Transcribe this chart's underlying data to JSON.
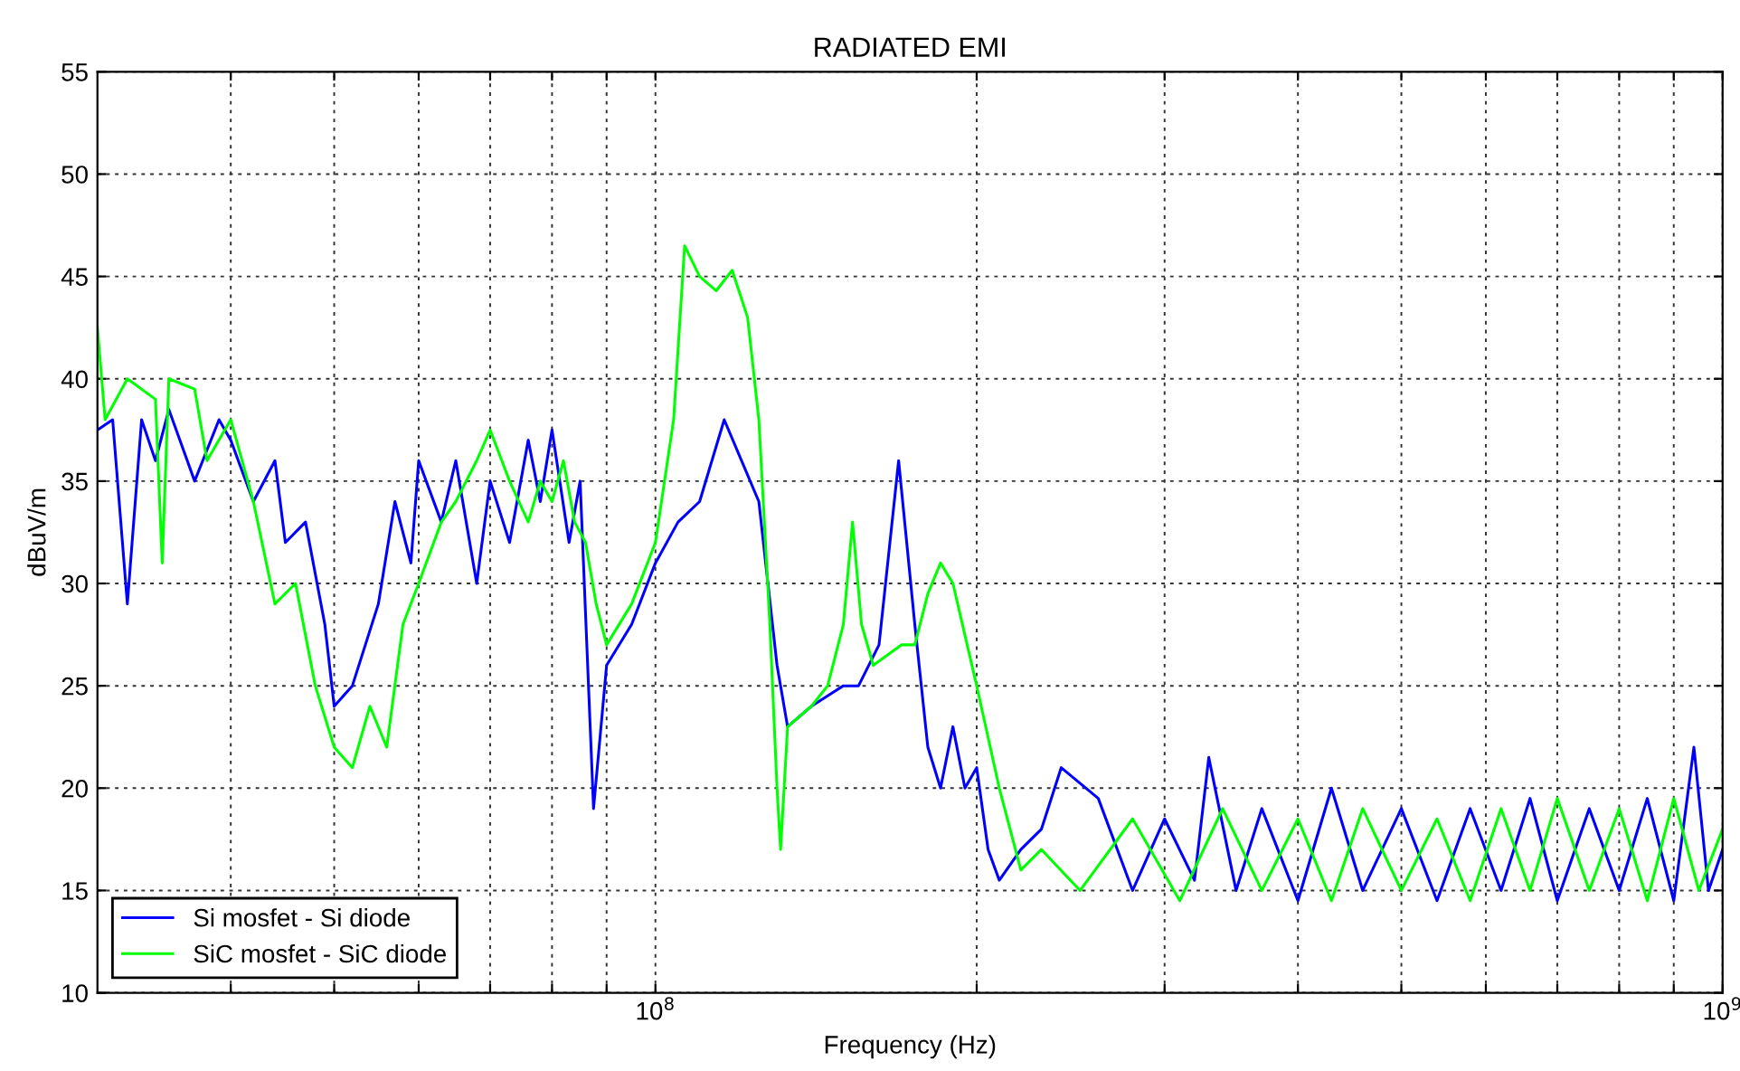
{
  "chart_data": {
    "type": "line",
    "title": "RADIATED EMI",
    "xlabel": "Frequency (Hz)",
    "ylabel": "dBuV/m",
    "log": "x",
    "xlim": [
      30000000,
      1000000000
    ],
    "ylim": [
      10,
      55
    ],
    "xticks": [
      {
        "value": 40000000,
        "label": null
      },
      {
        "value": 50000000,
        "label": null
      },
      {
        "value": 60000000,
        "label": null
      },
      {
        "value": 70000000,
        "label": null
      },
      {
        "value": 80000000,
        "label": null
      },
      {
        "value": 90000000,
        "label": null
      },
      {
        "value": 100000000,
        "label": "10$^{8}$"
      },
      {
        "value": 200000000,
        "label": null
      },
      {
        "value": 300000000,
        "label": null
      },
      {
        "value": 400000000,
        "label": null
      },
      {
        "value": 500000000,
        "label": null
      },
      {
        "value": 600000000,
        "label": null
      },
      {
        "value": 700000000,
        "label": null
      },
      {
        "value": 800000000,
        "label": null
      },
      {
        "value": 900000000,
        "label": null
      },
      {
        "value": 1000000000,
        "label": "10$^{9}$"
      }
    ],
    "yticks": [
      10,
      15,
      20,
      25,
      30,
      35,
      40,
      45,
      50,
      55
    ],
    "grid": true,
    "legend": "bottom left",
    "series": [
      {
        "name": "Si mosfet - Si diode",
        "color": "#0000ff",
        "x": [
          30000000,
          31000000,
          32000000,
          33000000,
          34000000,
          35000000,
          37000000,
          39000000,
          40000000,
          42000000,
          44000000,
          45000000,
          47000000,
          49000000,
          50000000,
          52000000,
          55000000,
          57000000,
          59000000,
          60000000,
          63000000,
          65000000,
          68000000,
          70000000,
          73000000,
          76000000,
          78000000,
          80000000,
          83000000,
          85000000,
          87500000,
          90000000,
          95000000,
          100000000,
          105000000,
          110000000,
          116000000,
          125000000,
          130000000,
          133000000,
          140000000,
          150000000,
          155000000,
          162000000,
          169000000,
          175000000,
          180000000,
          185000000,
          190000000,
          195000000,
          200000000,
          205000000,
          210000000,
          220000000,
          230000000,
          240000000,
          260000000,
          280000000,
          300000000,
          320000000,
          330000000,
          350000000,
          370000000,
          400000000,
          430000000,
          460000000,
          500000000,
          540000000,
          580000000,
          620000000,
          660000000,
          700000000,
          750000000,
          800000000,
          850000000,
          900000000,
          940000000,
          970000000,
          1000000000
        ],
        "values": [
          37.5,
          38,
          29,
          38,
          36,
          38.5,
          35,
          38,
          37,
          34,
          36,
          32,
          33,
          28,
          24,
          25,
          29,
          34,
          31,
          36,
          33,
          36,
          30,
          35,
          32,
          37,
          34,
          37.5,
          32,
          35,
          19,
          26,
          28,
          31,
          33,
          34,
          38,
          34,
          26,
          23,
          24,
          25,
          25,
          27,
          36,
          28,
          22,
          20,
          23,
          20,
          21,
          17,
          15.5,
          17,
          18,
          21,
          19.5,
          15,
          18.5,
          15.5,
          21.5,
          15,
          19,
          14.5,
          20,
          15,
          19,
          14.5,
          19,
          15,
          19.5,
          14.5,
          19,
          15,
          19.5,
          14.5,
          22,
          15,
          17
        ]
      },
      {
        "name": "SiC mosfet - SiC diode",
        "color": "#00ff00",
        "x": [
          30000000,
          30500000,
          32000000,
          34000000,
          34500000,
          35000000,
          37000000,
          38000000,
          40000000,
          42000000,
          44000000,
          46000000,
          48000000,
          50000000,
          52000000,
          54000000,
          56000000,
          58000000,
          60000000,
          63000000,
          65000000,
          68000000,
          70000000,
          73000000,
          76000000,
          78000000,
          80000000,
          82000000,
          84000000,
          86000000,
          88000000,
          90000000,
          95000000,
          100000000,
          104000000,
          106500000,
          110000000,
          114000000,
          118000000,
          122000000,
          125000000,
          128000000,
          130000000,
          131000000,
          133000000,
          140000000,
          145000000,
          150000000,
          153000000,
          156000000,
          160000000,
          170000000,
          175000000,
          180000000,
          185000000,
          190000000,
          200000000,
          210000000,
          220000000,
          230000000,
          250000000,
          280000000,
          310000000,
          340000000,
          370000000,
          400000000,
          430000000,
          460000000,
          500000000,
          540000000,
          580000000,
          620000000,
          660000000,
          700000000,
          750000000,
          800000000,
          850000000,
          900000000,
          950000000,
          1000000000
        ],
        "values": [
          42.5,
          38,
          40,
          39,
          31,
          40,
          39.5,
          36,
          38,
          34,
          29,
          30,
          25,
          22,
          21,
          24,
          22,
          28,
          30,
          33,
          34,
          36,
          37.5,
          35,
          33,
          35,
          34,
          36,
          33,
          32,
          29,
          27,
          29,
          32,
          38,
          46.5,
          45,
          44.3,
          45.3,
          43,
          38,
          28,
          20,
          17,
          23,
          24,
          25,
          28,
          33,
          28,
          26,
          27,
          27,
          29.5,
          31,
          30,
          25,
          20,
          16,
          17,
          15,
          18.5,
          14.5,
          19,
          15,
          18.5,
          14.5,
          19,
          15,
          18.5,
          14.5,
          19,
          15,
          19.5,
          15,
          19,
          14.5,
          19.5,
          15,
          18
        ]
      }
    ]
  }
}
